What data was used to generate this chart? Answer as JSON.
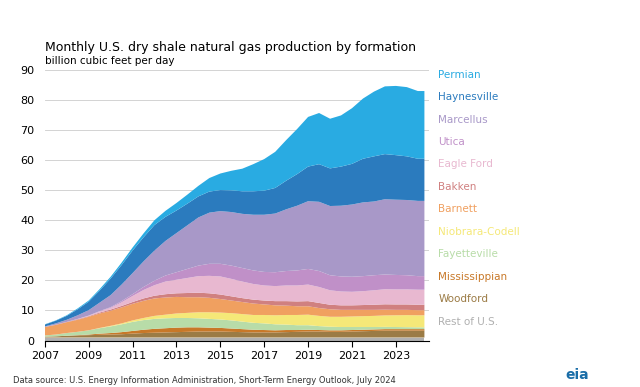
{
  "title": "Monthly U.S. dry shale natural gas production by formation",
  "ylabel": "billion cubic feet per day",
  "yticks": [
    0,
    10,
    20,
    30,
    40,
    50,
    60,
    70,
    80,
    90
  ],
  "ylim": [
    0,
    90
  ],
  "xlim": [
    2007,
    2024.5
  ],
  "xtick_years": [
    2007,
    2009,
    2011,
    2013,
    2015,
    2017,
    2019,
    2021,
    2023
  ],
  "footnote": "Data source: U.S. Energy Information Administration, Short-Term Energy Outlook, July 2024",
  "background_color": "#ffffff",
  "formations": [
    "Rest of U.S.",
    "Woodford",
    "Mississippian",
    "Fayetteville",
    "Niobrara-Codell",
    "Barnett",
    "Bakken",
    "Eagle Ford",
    "Utica",
    "Marcellus",
    "Haynesville",
    "Permian"
  ],
  "colors": [
    "#b0b0b0",
    "#9B7B45",
    "#C87828",
    "#B8DCA8",
    "#F5E878",
    "#F0A060",
    "#D08080",
    "#E8B8D0",
    "#C090C8",
    "#A898C8",
    "#2B7BBE",
    "#29ABE2"
  ],
  "legend_colors": [
    "#29ABE2",
    "#2B7BBE",
    "#A898C8",
    "#C090C8",
    "#E8B8D0",
    "#D08080",
    "#F0A060",
    "#F5E878",
    "#B8DCA8",
    "#C87828",
    "#9B7B45",
    "#b0b0b0"
  ],
  "legend_labels": [
    "Permian",
    "Haynesville",
    "Marcellus",
    "Utica",
    "Eagle Ford",
    "Bakken",
    "Barnett",
    "Niobrara-Codell",
    "Fayetteville",
    "Mississippian",
    "Woodford",
    "Rest of U.S."
  ],
  "years": [
    2007.0,
    2007.5,
    2008.0,
    2008.5,
    2009.0,
    2009.5,
    2010.0,
    2010.5,
    2011.0,
    2011.5,
    2012.0,
    2012.5,
    2013.0,
    2013.5,
    2014.0,
    2014.5,
    2015.0,
    2015.5,
    2016.0,
    2016.5,
    2017.0,
    2017.5,
    2018.0,
    2018.5,
    2019.0,
    2019.5,
    2020.0,
    2020.5,
    2021.0,
    2021.5,
    2022.0,
    2022.5,
    2023.0,
    2023.5,
    2024.0,
    2024.3
  ],
  "data": {
    "Rest of U.S.": [
      1.0,
      1.0,
      1.0,
      1.0,
      1.0,
      1.0,
      1.0,
      1.0,
      1.0,
      1.0,
      1.0,
      1.0,
      1.0,
      1.0,
      1.0,
      1.0,
      1.0,
      1.0,
      1.0,
      1.0,
      1.0,
      1.0,
      1.0,
      1.0,
      1.0,
      1.0,
      1.0,
      1.0,
      1.0,
      1.0,
      1.0,
      1.0,
      1.0,
      1.0,
      1.0,
      1.0
    ],
    "Woodford": [
      0.3,
      0.4,
      0.6,
      0.7,
      0.8,
      0.9,
      1.0,
      1.1,
      1.3,
      1.5,
      1.6,
      1.7,
      1.8,
      1.9,
      2.0,
      2.0,
      2.0,
      1.9,
      1.8,
      1.7,
      1.7,
      1.7,
      1.8,
      1.9,
      2.0,
      2.0,
      1.9,
      1.9,
      2.0,
      2.1,
      2.2,
      2.3,
      2.3,
      2.3,
      2.3,
      2.3
    ],
    "Mississippian": [
      0.0,
      0.0,
      0.0,
      0.1,
      0.2,
      0.4,
      0.5,
      0.7,
      0.9,
      1.1,
      1.3,
      1.4,
      1.5,
      1.5,
      1.4,
      1.3,
      1.2,
      1.1,
      1.0,
      0.9,
      0.8,
      0.7,
      0.7,
      0.6,
      0.6,
      0.5,
      0.5,
      0.5,
      0.5,
      0.5,
      0.5,
      0.5,
      0.5,
      0.5,
      0.5,
      0.5
    ],
    "Fayetteville": [
      0.4,
      0.6,
      0.9,
      1.1,
      1.4,
      1.8,
      2.2,
      2.6,
      3.0,
      3.2,
      3.3,
      3.3,
      3.2,
      3.1,
      3.0,
      2.9,
      2.8,
      2.7,
      2.5,
      2.3,
      2.2,
      2.0,
      1.8,
      1.6,
      1.5,
      1.3,
      1.2,
      1.1,
      1.0,
      0.9,
      0.8,
      0.75,
      0.7,
      0.65,
      0.6,
      0.6
    ],
    "Niobrara-Codell": [
      0.0,
      0.0,
      0.0,
      0.0,
      0.0,
      0.1,
      0.2,
      0.3,
      0.5,
      0.7,
      1.0,
      1.2,
      1.5,
      1.7,
      2.0,
      2.2,
      2.3,
      2.4,
      2.5,
      2.6,
      2.8,
      3.0,
      3.2,
      3.4,
      3.5,
      3.4,
      3.3,
      3.4,
      3.5,
      3.6,
      3.7,
      3.8,
      3.9,
      4.0,
      4.0,
      4.0
    ],
    "Barnett": [
      2.8,
      3.2,
      3.6,
      4.0,
      4.5,
      4.8,
      5.0,
      5.3,
      5.5,
      5.7,
      5.8,
      5.7,
      5.5,
      5.2,
      5.0,
      4.8,
      4.5,
      4.2,
      4.0,
      3.8,
      3.5,
      3.3,
      3.1,
      2.9,
      2.8,
      2.6,
      2.5,
      2.3,
      2.2,
      2.1,
      2.0,
      1.9,
      1.8,
      1.75,
      1.7,
      1.7
    ],
    "Bakken": [
      0.0,
      0.1,
      0.1,
      0.2,
      0.2,
      0.3,
      0.4,
      0.5,
      0.6,
      0.8,
      0.9,
      1.1,
      1.2,
      1.4,
      1.5,
      1.5,
      1.5,
      1.4,
      1.3,
      1.3,
      1.3,
      1.4,
      1.5,
      1.6,
      1.7,
      1.7,
      1.5,
      1.5,
      1.5,
      1.6,
      1.7,
      1.8,
      1.8,
      1.8,
      1.8,
      1.8
    ],
    "Eagle Ford": [
      0.0,
      0.0,
      0.0,
      0.1,
      0.2,
      0.4,
      0.6,
      1.2,
      2.0,
      2.8,
      3.5,
      4.2,
      4.5,
      5.0,
      5.5,
      5.8,
      6.0,
      5.8,
      5.5,
      5.2,
      5.0,
      5.0,
      5.2,
      5.3,
      5.5,
      5.3,
      4.8,
      4.6,
      4.5,
      4.6,
      4.8,
      5.0,
      5.0,
      5.0,
      5.0,
      5.0
    ],
    "Utica": [
      0.0,
      0.0,
      0.0,
      0.0,
      0.0,
      0.1,
      0.2,
      0.4,
      0.6,
      1.0,
      1.5,
      2.0,
      2.5,
      3.0,
      3.5,
      4.0,
      4.2,
      4.4,
      4.5,
      4.5,
      4.5,
      4.6,
      4.8,
      5.0,
      5.2,
      5.3,
      5.0,
      5.0,
      5.0,
      5.0,
      5.0,
      4.9,
      4.8,
      4.7,
      4.5,
      4.5
    ],
    "Marcellus": [
      0.2,
      0.4,
      0.7,
      1.2,
      1.8,
      2.8,
      4.0,
      5.5,
      7.0,
      8.5,
      10.0,
      11.5,
      13.0,
      14.5,
      16.0,
      17.0,
      17.5,
      17.8,
      18.0,
      18.5,
      19.0,
      19.5,
      20.5,
      21.5,
      22.5,
      23.0,
      23.0,
      23.5,
      24.0,
      24.5,
      24.5,
      25.0,
      25.0,
      25.0,
      25.0,
      25.0
    ],
    "Haynesville": [
      0.6,
      0.9,
      1.3,
      2.0,
      2.8,
      4.0,
      5.5,
      6.5,
      7.5,
      8.0,
      8.5,
      8.0,
      7.5,
      7.2,
      7.0,
      7.0,
      7.0,
      7.2,
      7.5,
      7.8,
      8.0,
      8.5,
      9.5,
      10.5,
      11.5,
      12.5,
      12.5,
      13.0,
      13.5,
      14.5,
      15.0,
      15.0,
      14.8,
      14.5,
      14.0,
      14.0
    ],
    "Permian": [
      0.1,
      0.1,
      0.2,
      0.3,
      0.4,
      0.5,
      0.6,
      0.8,
      1.0,
      1.3,
      1.6,
      2.0,
      2.5,
      3.0,
      3.5,
      4.5,
      5.5,
      6.5,
      7.5,
      9.0,
      10.5,
      12.0,
      13.5,
      15.0,
      16.5,
      17.0,
      16.5,
      17.0,
      18.5,
      20.0,
      21.5,
      22.5,
      23.0,
      23.0,
      22.5,
      22.5
    ]
  }
}
